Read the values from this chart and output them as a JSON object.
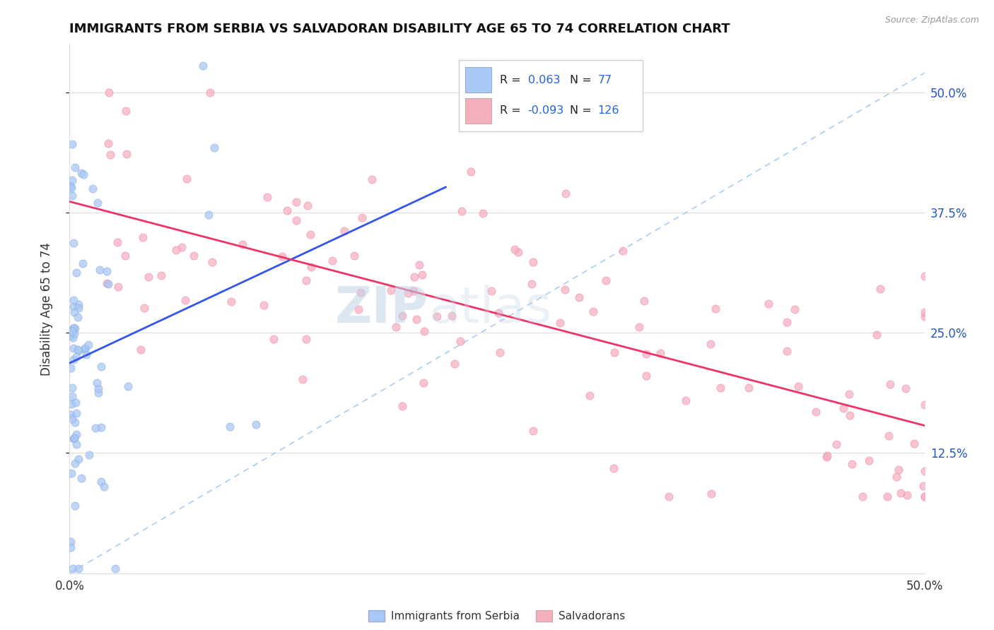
{
  "title": "IMMIGRANTS FROM SERBIA VS SALVADORAN DISABILITY AGE 65 TO 74 CORRELATION CHART",
  "source": "Source: ZipAtlas.com",
  "ylabel": "Disability Age 65 to 74",
  "xlim": [
    0.0,
    0.5
  ],
  "ylim": [
    0.0,
    0.55
  ],
  "r_serbia": 0.063,
  "n_serbia": 77,
  "r_salvadoran": -0.093,
  "n_salvadoran": 126,
  "serbia_color": "#a8c8f5",
  "salvadoran_color": "#f5b0c0",
  "serbia_line_color": "#3355ee",
  "salvadoran_line_color": "#ee3366",
  "dash_color": "#aaccee",
  "watermark_zip": "ZIP",
  "watermark_atlas": "atlas",
  "legend_r1": "R =  0.063",
  "legend_n1": "N =  77",
  "legend_r2": "R = -0.093",
  "legend_n2": "N = 126"
}
